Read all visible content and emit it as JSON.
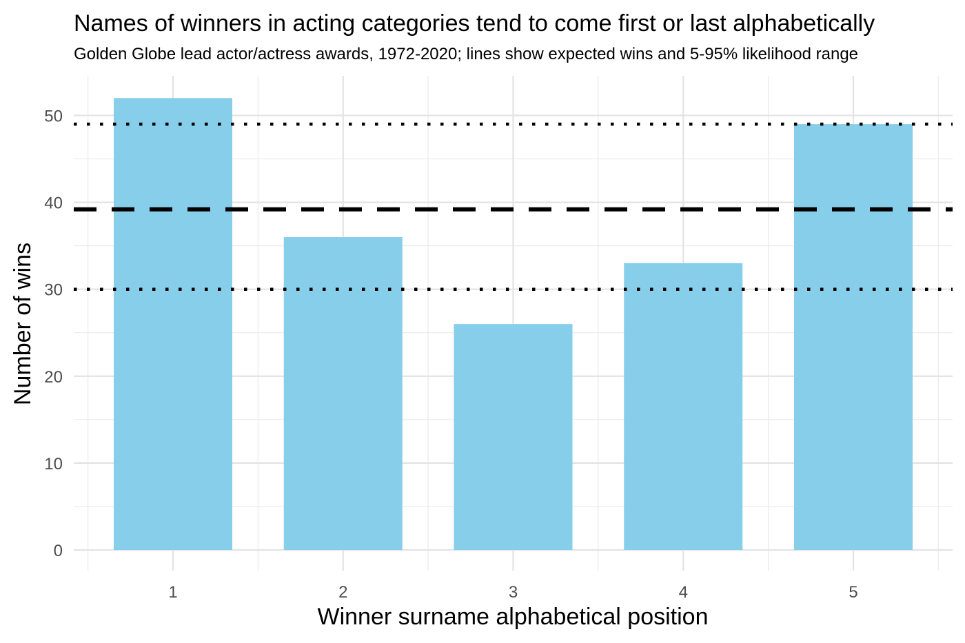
{
  "chart_data": {
    "type": "bar",
    "title": "Names of winners in acting categories tend to come first or last alphabetically",
    "subtitle": "Golden Globe lead actor/actress awards, 1972-2020; lines show expected wins and 5-95% likelihood range",
    "xlabel": "Winner surname alphabetical position",
    "ylabel": "Number of wins",
    "categories": [
      "1",
      "2",
      "3",
      "4",
      "5"
    ],
    "values": [
      52,
      36,
      26,
      33,
      49
    ],
    "ylim": [
      0,
      55
    ],
    "yticks": [
      0,
      10,
      20,
      30,
      40,
      50
    ],
    "reference_lines": [
      {
        "kind": "expected",
        "value": 39.2,
        "style": "dashed"
      },
      {
        "kind": "5% likelihood",
        "value": 30,
        "style": "dotted"
      },
      {
        "kind": "95% likelihood",
        "value": 49,
        "style": "dotted"
      }
    ],
    "bar_color": "#87CEEB",
    "grid": true,
    "legend": "none"
  }
}
